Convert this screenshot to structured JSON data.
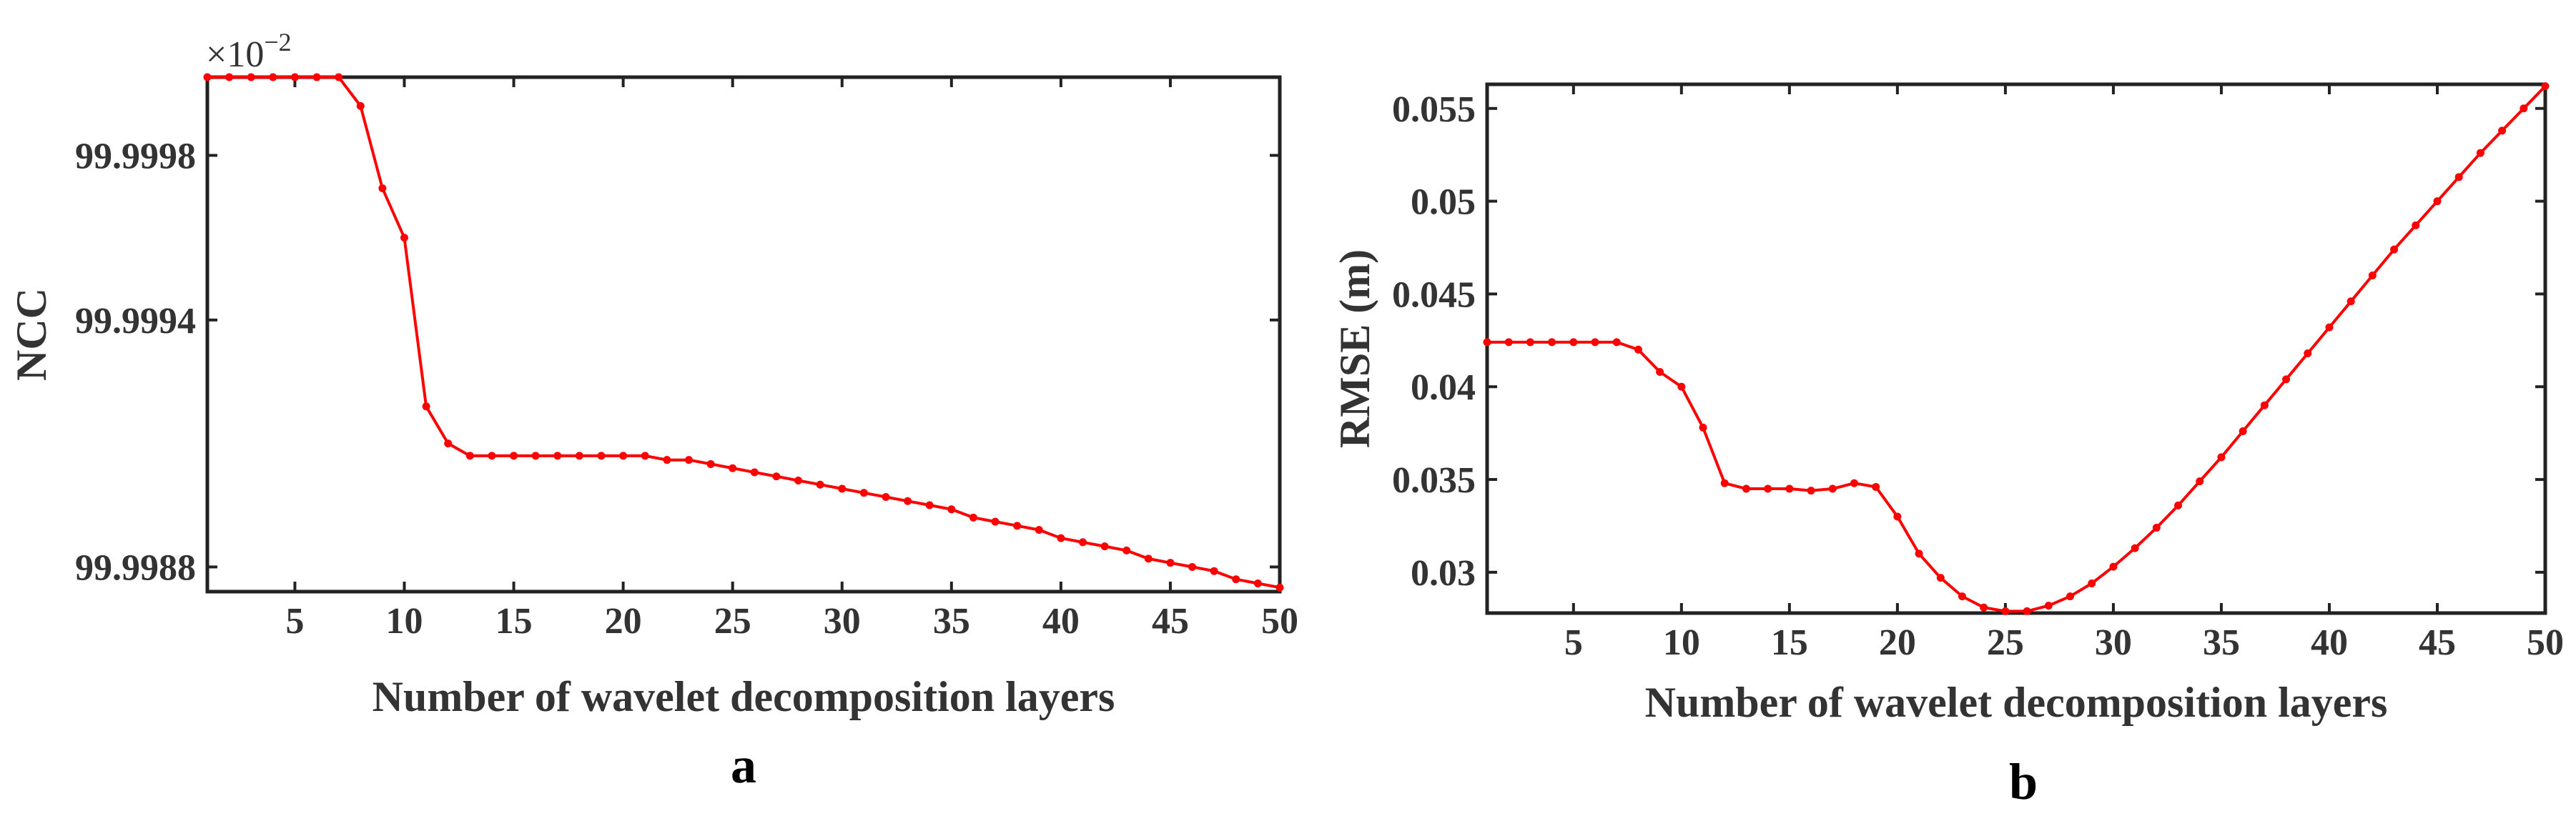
{
  "colors": {
    "series": "#ff0000",
    "axis": "#222222",
    "text": "#333333"
  },
  "chart_data": [
    {
      "type": "line",
      "panel_label": "a",
      "xlabel": "Number of wavelet decomposition layers",
      "ylabel": "NCC",
      "y_multiplier": "×10",
      "y_multiplier_exponent": "−2",
      "xlim": [
        1,
        50
      ],
      "ylim": [
        99.99874,
        99.99999
      ],
      "xticks": [
        5,
        10,
        15,
        20,
        25,
        30,
        35,
        40,
        45,
        50
      ],
      "xtick_labels": [
        "5",
        "10",
        "15",
        "20",
        "25",
        "30",
        "35",
        "40",
        "45",
        "50"
      ],
      "yticks": [
        99.9988,
        99.9994,
        99.9998
      ],
      "ytick_labels": [
        "99.9988",
        "99.9994",
        "99.9998"
      ],
      "series": [
        {
          "name": "NCC",
          "x": [
            1,
            2,
            3,
            4,
            5,
            6,
            7,
            8,
            9,
            10,
            11,
            12,
            13,
            14,
            15,
            16,
            17,
            18,
            19,
            20,
            21,
            22,
            23,
            24,
            25,
            26,
            27,
            28,
            29,
            30,
            31,
            32,
            33,
            34,
            35,
            36,
            37,
            38,
            39,
            40,
            41,
            42,
            43,
            44,
            45,
            46,
            47,
            48,
            49,
            50
          ],
          "values": [
            99.99999,
            99.99999,
            99.99999,
            99.99999,
            99.99999,
            99.99999,
            99.99999,
            99.99992,
            99.99972,
            99.9996,
            99.99919,
            99.9991,
            99.99907,
            99.99907,
            99.99907,
            99.99907,
            99.99907,
            99.99907,
            99.99907,
            99.99907,
            99.99907,
            99.99906,
            99.99906,
            99.99905,
            99.99904,
            99.99903,
            99.99902,
            99.99901,
            99.999,
            99.99899,
            99.99898,
            99.99897,
            99.99896,
            99.99895,
            99.99894,
            99.99892,
            99.99891,
            99.9989,
            99.99889,
            99.99887,
            99.99886,
            99.99885,
            99.99884,
            99.99882,
            99.99881,
            99.9988,
            99.99879,
            99.99877,
            99.99876,
            99.99875
          ]
        }
      ]
    },
    {
      "type": "line",
      "panel_label": "b",
      "xlabel": "Number of wavelet decomposition layers",
      "ylabel": "RMSE (m)",
      "xlim": [
        1,
        50
      ],
      "ylim": [
        0.0278,
        0.0563
      ],
      "xticks": [
        5,
        10,
        15,
        20,
        25,
        30,
        35,
        40,
        45,
        50
      ],
      "xtick_labels": [
        "5",
        "10",
        "15",
        "20",
        "25",
        "30",
        "35",
        "40",
        "45",
        "50"
      ],
      "yticks": [
        0.03,
        0.035,
        0.04,
        0.045,
        0.05,
        0.055
      ],
      "ytick_labels": [
        "0.03",
        "0.035",
        "0.04",
        "0.045",
        "0.05",
        "0.055"
      ],
      "series": [
        {
          "name": "RMSE",
          "x": [
            1,
            2,
            3,
            4,
            5,
            6,
            7,
            8,
            9,
            10,
            11,
            12,
            13,
            14,
            15,
            16,
            17,
            18,
            19,
            20,
            21,
            22,
            23,
            24,
            25,
            26,
            27,
            28,
            29,
            30,
            31,
            32,
            33,
            34,
            35,
            36,
            37,
            38,
            39,
            40,
            41,
            42,
            43,
            44,
            45,
            46,
            47,
            48,
            49,
            50
          ],
          "values": [
            0.0424,
            0.0424,
            0.0424,
            0.0424,
            0.0424,
            0.0424,
            0.0424,
            0.042,
            0.0408,
            0.04,
            0.0378,
            0.0348,
            0.0345,
            0.0345,
            0.0345,
            0.0344,
            0.0345,
            0.0348,
            0.0346,
            0.033,
            0.031,
            0.0297,
            0.0287,
            0.0281,
            0.0279,
            0.0279,
            0.0282,
            0.0287,
            0.0294,
            0.0303,
            0.0313,
            0.0324,
            0.0336,
            0.0349,
            0.0362,
            0.0376,
            0.039,
            0.0404,
            0.0418,
            0.0432,
            0.0446,
            0.046,
            0.0474,
            0.0487,
            0.05,
            0.0513,
            0.0526,
            0.0538,
            0.055,
            0.0562
          ]
        }
      ]
    }
  ]
}
